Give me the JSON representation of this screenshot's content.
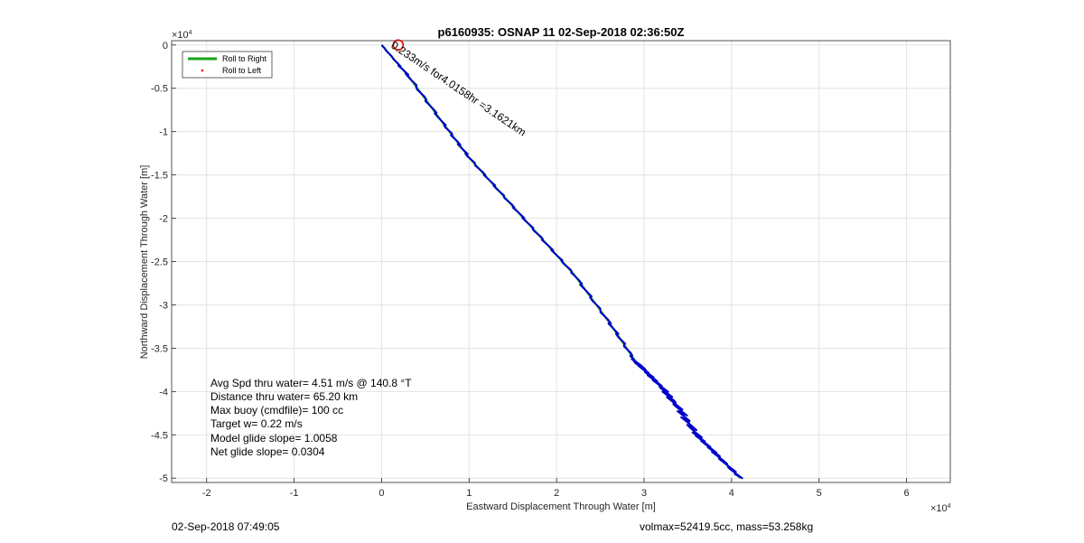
{
  "chart_data": {
    "type": "line",
    "title": "p6160935: OSNAP 11 02-Sep-2018 02:36:50Z",
    "xlabel": "Eastward Displacement Through Water [m]",
    "ylabel": "Northward Displacement Through Water [m]",
    "x_exponent_label": "×10",
    "x_exponent_power": "4",
    "y_exponent_label": "×10",
    "y_exponent_power": "4",
    "xlim": [
      -2.4,
      6.5
    ],
    "ylim": [
      -5.05,
      0.05
    ],
    "xticks": [
      -2,
      -1,
      0,
      1,
      2,
      3,
      4,
      5,
      6
    ],
    "xtick_labels": [
      "-2",
      "-1",
      "0",
      "1",
      "2",
      "3",
      "4",
      "5",
      "6"
    ],
    "yticks": [
      0,
      -0.5,
      -1,
      -1.5,
      -2,
      -2.5,
      -3,
      -3.5,
      -4,
      -4.5,
      -5
    ],
    "ytick_labels": [
      "0",
      "-0.5",
      "-1",
      "-1.5",
      "-2",
      "-2.5",
      "-3",
      "-3.5",
      "-4",
      "-4.5",
      "-5"
    ],
    "grid": true,
    "legend_position": "top-left",
    "series": [
      {
        "name": "Roll to Right",
        "color": "#1aa31a",
        "x": [
          0,
          0.3,
          0.7,
          1.0,
          1.4,
          1.8,
          2.2,
          2.6,
          2.9,
          3.0,
          3.2,
          3.4,
          3.6,
          3.8,
          4.1
        ],
        "y": [
          0,
          -0.35,
          -0.9,
          -1.3,
          -1.75,
          -2.2,
          -2.65,
          -3.2,
          -3.65,
          -3.75,
          -3.95,
          -4.2,
          -4.5,
          -4.7,
          -5.0
        ]
      },
      {
        "name": "Roll to Left",
        "color": "#ff0000",
        "x": [],
        "y": []
      }
    ],
    "track_color": "#0000cc",
    "start_marker": {
      "x": 0.19,
      "y": 0,
      "color": "#dd0000"
    },
    "leg_annotation": "0.233m/s for4.0158hr =3.1621km",
    "stats": [
      "Avg Spd thru water=  4.51 m/s @ 140.8 °T",
      "Distance thru water= 65.20 km",
      "Max buoy (cmdfile)= 100 cc",
      "Target w= 0.22 m/s",
      "Model glide slope= 1.0058",
      "Net glide slope= 0.0304"
    ]
  },
  "footer": {
    "left": "02-Sep-2018 07:49:05",
    "right": "volmax=52419.5cc, mass=53.258kg"
  }
}
